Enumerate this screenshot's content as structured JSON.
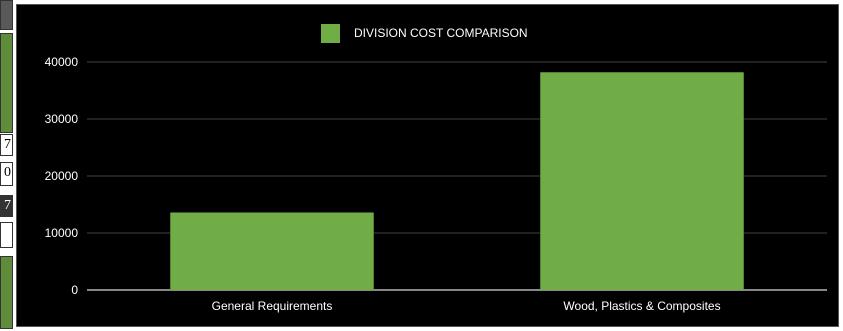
{
  "sheet": {
    "fragments": [
      "7",
      "0",
      "7"
    ]
  },
  "colors": {
    "background": "#000000",
    "bar": "#70ad47",
    "gridline": "#595959",
    "text": "#ffffff",
    "sheet_green": "#5e8c3a",
    "sheet_dark": "#333333"
  },
  "chart_data": {
    "type": "bar",
    "title": "",
    "legend": {
      "position": "top",
      "entries": [
        "DIVISION COST COMPARISON"
      ]
    },
    "categories": [
      "General Requirements",
      "Wood, Plastics & Composites"
    ],
    "series": [
      {
        "name": "DIVISION COST COMPARISON",
        "values": [
          13600,
          38200
        ]
      }
    ],
    "ylim": [
      0,
      40000
    ],
    "yticks": [
      0,
      10000,
      20000,
      30000,
      40000
    ],
    "ytick_labels": [
      "0",
      "10000",
      "20000",
      "30000",
      "40000"
    ],
    "xlabel": "",
    "ylabel": "",
    "grid": true
  }
}
